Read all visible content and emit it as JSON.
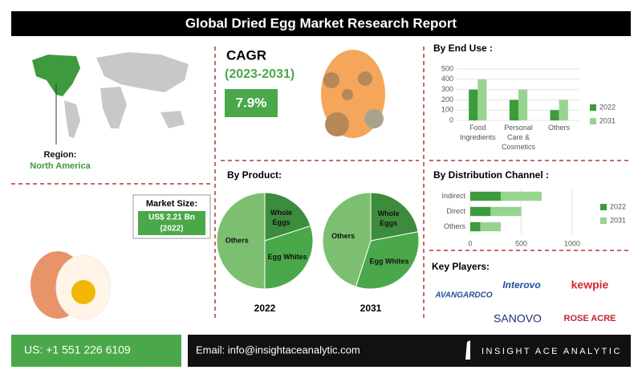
{
  "header": {
    "title": "Global Dried Egg Market Research Report"
  },
  "region": {
    "label": "Region:",
    "value": "North America"
  },
  "cagr": {
    "label": "CAGR",
    "period": "(2023-2031)",
    "value": "7.9%"
  },
  "market_size": {
    "label": "Market Size:",
    "value": "US$ 2.21 Bn",
    "year": "(2022)"
  },
  "product_heading": "By Product:",
  "chart_data": [
    {
      "type": "bar",
      "title": "By End Use :",
      "categories": [
        "Food Ingredients",
        "Personal Care & Cosmetics",
        "Others"
      ],
      "series": [
        {
          "name": "2022",
          "color": "#3d9b3d",
          "values": [
            300,
            200,
            100
          ]
        },
        {
          "name": "2031",
          "color": "#96d48f",
          "values": [
            400,
            300,
            200
          ]
        }
      ],
      "ylim": [
        0,
        500
      ],
      "yticks": [
        0,
        100,
        200,
        300,
        400,
        500
      ],
      "grid": true
    },
    {
      "type": "hbar_stacked",
      "title": "By Distribution Channel :",
      "categories": [
        "Indirect",
        "Direct",
        "Others"
      ],
      "series": [
        {
          "name": "2022",
          "color": "#3d9b3d",
          "values": [
            300,
            200,
            100
          ]
        },
        {
          "name": "2031",
          "color": "#96d48f",
          "values": [
            400,
            300,
            200
          ]
        }
      ],
      "xlim": [
        0,
        1000
      ],
      "xticks": [
        0,
        500,
        1000
      ],
      "grid": true
    },
    {
      "type": "pie",
      "title": "2022",
      "labels": [
        "Whole Eggs",
        "Egg Whites",
        "Others"
      ],
      "values": [
        20,
        30,
        50
      ],
      "colors": [
        "#3d8b3d",
        "#4aa84a",
        "#7dbf70"
      ]
    },
    {
      "type": "pie",
      "title": "2031",
      "labels": [
        "Whole Eggs",
        "Egg Whites",
        "Others"
      ],
      "values": [
        22,
        33,
        45
      ],
      "colors": [
        "#3d8b3d",
        "#4aa84a",
        "#7dbf70"
      ]
    }
  ],
  "key_players": {
    "title": "Key Players:",
    "names": [
      "AVANGARDCO",
      "Interovo",
      "kewpie",
      "SANOVO",
      "ROSE ACRE"
    ]
  },
  "footer": {
    "phone": "US: +1 551 226 6109",
    "email": "Email: info@insightaceanalytic.com",
    "brand": "INSIGHT ACE ANALYTIC"
  }
}
